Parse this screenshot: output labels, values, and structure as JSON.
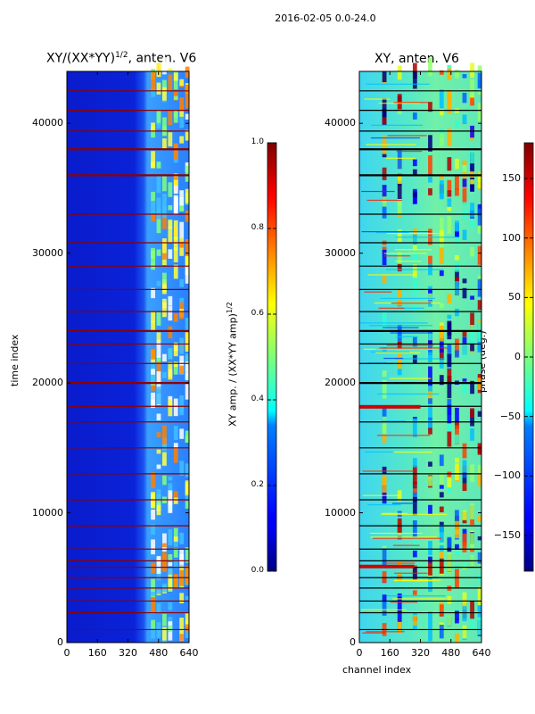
{
  "figure": {
    "title": "2016-02-05 0.0-24.0"
  },
  "chart_data": [
    {
      "type": "heatmap",
      "title": "XY/(XX*YY)^{1/2}, anten. V6",
      "title_base": "XY/(XX*YY)",
      "title_sup": "1/2",
      "title_suffix": ", anten. V6",
      "xlabel": "",
      "ylabel": "time index",
      "xlim": [
        0,
        640
      ],
      "ylim": [
        0,
        44000
      ],
      "xticks": [
        0,
        160,
        320,
        480,
        640
      ],
      "yticks": [
        0,
        10000,
        20000,
        30000,
        40000
      ],
      "colormap": "jet",
      "colorbar": {
        "label_base": "XY amp. / (XX*YY amp)",
        "label_sup": "1/2",
        "range": [
          0.0,
          1.0
        ],
        "ticks": [
          "0.0",
          "0.2",
          "0.4",
          "0.6",
          "0.8",
          "1.0"
        ],
        "tick_values": [
          0.0,
          0.2,
          0.4,
          0.6,
          0.8,
          1.0
        ]
      }
    },
    {
      "type": "heatmap",
      "title": "XY, anten. V6",
      "xlabel": "channel index",
      "ylabel": "",
      "xlim": [
        0,
        640
      ],
      "ylim": [
        0,
        44000
      ],
      "xticks": [
        0,
        160,
        320,
        480,
        640
      ],
      "yticks": [
        0,
        10000,
        20000,
        30000,
        40000
      ],
      "colormap": "jet",
      "colorbar": {
        "label": "phase (deg.)",
        "range": [
          -180,
          180
        ],
        "ticks": [
          "150",
          "100",
          "50",
          "0",
          "−50",
          "−100",
          "−150"
        ],
        "tick_values": [
          150,
          100,
          50,
          0,
          -50,
          -100,
          -150
        ]
      }
    }
  ]
}
